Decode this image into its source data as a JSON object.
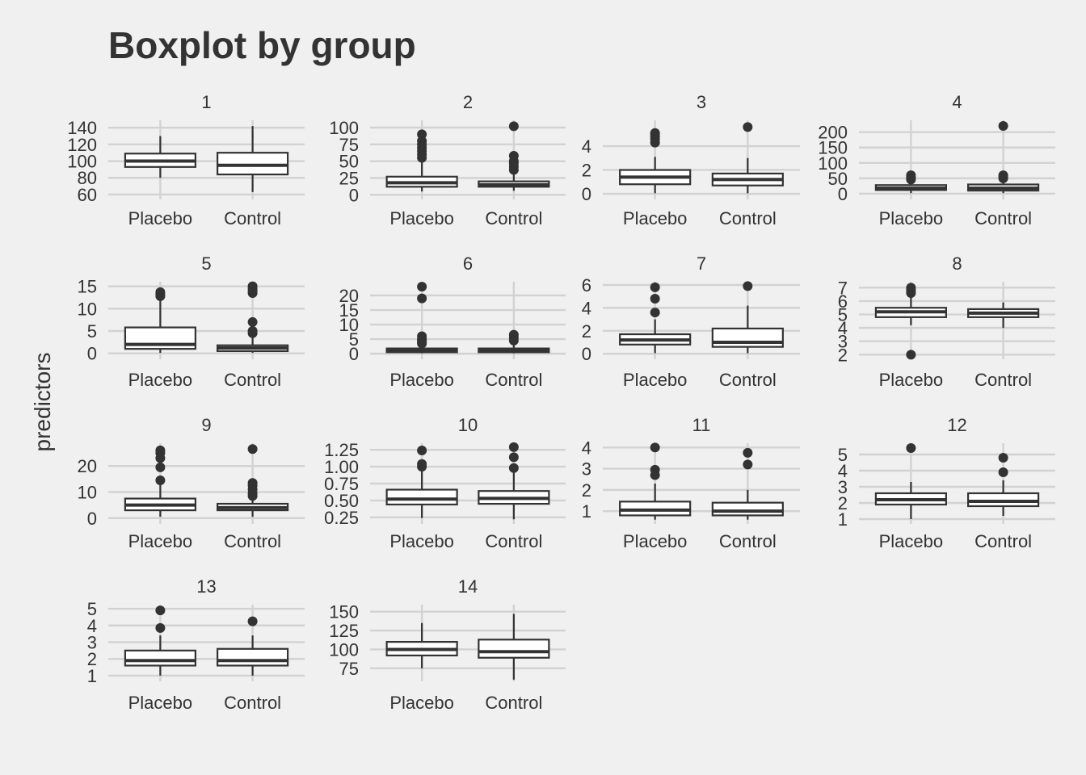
{
  "chart_data": {
    "type": "boxplot",
    "title": "Boxplot by group",
    "ylabel": "predictors",
    "xlabel": "",
    "categories": [
      "Placebo",
      "Control"
    ],
    "grid": "on",
    "legend": "none",
    "colors": {
      "background": "#f0f0f0",
      "grid": "#d2d2d2",
      "box_fill": "#ffffff",
      "ink": "#333333"
    },
    "panels": [
      {
        "label": "1",
        "ylim": [
          58,
          145
        ],
        "yticks": [
          60,
          80,
          100,
          120,
          140
        ],
        "boxes": [
          {
            "group": "Placebo",
            "lower": 80,
            "q1": 93,
            "median": 100,
            "q3": 109,
            "upper": 130,
            "outliers": []
          },
          {
            "group": "Control",
            "lower": 63,
            "q1": 84,
            "median": 95,
            "q3": 110,
            "upper": 142,
            "outliers": []
          }
        ]
      },
      {
        "label": "2",
        "ylim": [
          -2,
          106
        ],
        "yticks": [
          0,
          25,
          50,
          75,
          100
        ],
        "boxes": [
          {
            "group": "Placebo",
            "lower": 5,
            "q1": 12,
            "median": 18,
            "q3": 27,
            "upper": 48,
            "outliers": [
              55,
              60,
              65,
              70,
              75,
              80,
              90
            ]
          },
          {
            "group": "Control",
            "lower": 6,
            "q1": 12,
            "median": 15,
            "q3": 20,
            "upper": 30,
            "outliers": [
              37,
              42,
              47,
              50,
              58,
              102
            ]
          }
        ]
      },
      {
        "label": "3",
        "ylim": [
          -0.2,
          5.9
        ],
        "yticks": [
          0,
          2,
          4
        ],
        "boxes": [
          {
            "group": "Placebo",
            "lower": 0.05,
            "q1": 0.8,
            "median": 1.4,
            "q3": 2.0,
            "upper": 3.1,
            "outliers": [
              4.3,
              4.6,
              4.8,
              5.0,
              5.1
            ]
          },
          {
            "group": "Control",
            "lower": 0.05,
            "q1": 0.7,
            "median": 1.2,
            "q3": 1.7,
            "upper": 3.0,
            "outliers": [
              5.6
            ]
          }
        ]
      },
      {
        "label": "4",
        "ylim": [
          -8,
          228
        ],
        "yticks": [
          0,
          50,
          100,
          150,
          200
        ],
        "boxes": [
          {
            "group": "Placebo",
            "lower": 2,
            "q1": 12,
            "median": 18,
            "q3": 28,
            "upper": 38,
            "outliers": [
              46,
              52,
              60
            ]
          },
          {
            "group": "Control",
            "lower": 2,
            "q1": 10,
            "median": 18,
            "q3": 30,
            "upper": 40,
            "outliers": [
              50,
              55,
              60,
              220
            ]
          }
        ]
      },
      {
        "label": "5",
        "ylim": [
          -0.6,
          15.3
        ],
        "yticks": [
          0,
          5,
          10,
          15
        ],
        "boxes": [
          {
            "group": "Placebo",
            "lower": 0.1,
            "q1": 1.0,
            "median": 2.0,
            "q3": 5.8,
            "upper": 12.5,
            "outliers": [
              12.8,
              13.2,
              13.7
            ]
          },
          {
            "group": "Control",
            "lower": 0.1,
            "q1": 0.5,
            "median": 1.2,
            "q3": 1.8,
            "upper": 3.5,
            "outliers": [
              4.5,
              5.0,
              7.0,
              13.5,
              14.0,
              14.5,
              15.0
            ]
          }
        ]
      },
      {
        "label": "6",
        "ylim": [
          -0.8,
          23.6
        ],
        "yticks": [
          0,
          5,
          10,
          15,
          20
        ],
        "boxes": [
          {
            "group": "Placebo",
            "lower": 0.1,
            "q1": 0.5,
            "median": 1.0,
            "q3": 1.8,
            "upper": 3.0,
            "outliers": [
              3.5,
              4.0,
              4.5,
              5.0,
              6.0,
              19.0,
              23.0
            ]
          },
          {
            "group": "Control",
            "lower": 0.1,
            "q1": 0.5,
            "median": 1.0,
            "q3": 1.8,
            "upper": 3.5,
            "outliers": [
              4.5,
              5.5,
              6.5
            ]
          }
        ]
      },
      {
        "label": "7",
        "ylim": [
          -0.2,
          6.0
        ],
        "yticks": [
          0,
          2,
          4,
          6
        ],
        "boxes": [
          {
            "group": "Placebo",
            "lower": 0.05,
            "q1": 0.8,
            "median": 1.2,
            "q3": 1.7,
            "upper": 3.0,
            "outliers": [
              3.6,
              4.8,
              5.8
            ]
          },
          {
            "group": "Control",
            "lower": 0.05,
            "q1": 0.6,
            "median": 1.0,
            "q3": 2.2,
            "upper": 4.2,
            "outliers": [
              5.9
            ]
          }
        ]
      },
      {
        "label": "8",
        "ylim": [
          1.9,
          7.2
        ],
        "yticks": [
          2,
          3,
          4,
          5,
          6,
          7
        ],
        "boxes": [
          {
            "group": "Placebo",
            "lower": 4.2,
            "q1": 4.8,
            "median": 5.2,
            "q3": 5.5,
            "upper": 6.5,
            "outliers": [
              2.0,
              6.6,
              6.8,
              7.0
            ]
          },
          {
            "group": "Control",
            "lower": 4.0,
            "q1": 4.8,
            "median": 5.1,
            "q3": 5.4,
            "upper": 5.9,
            "outliers": []
          }
        ]
      },
      {
        "label": "9",
        "ylim": [
          -1,
          27.5
        ],
        "yticks": [
          0,
          10,
          20
        ],
        "boxes": [
          {
            "group": "Placebo",
            "lower": 0.5,
            "q1": 3.0,
            "median": 5.0,
            "q3": 7.5,
            "upper": 13.0,
            "outliers": [
              14.5,
              19.5,
              23.0,
              25.0,
              26.0
            ]
          },
          {
            "group": "Control",
            "lower": 0.5,
            "q1": 3.0,
            "median": 4.0,
            "q3": 5.5,
            "upper": 7.5,
            "outliers": [
              8.5,
              9.5,
              11.0,
              12.5,
              13.5,
              26.5
            ]
          }
        ]
      },
      {
        "label": "10",
        "ylim": [
          0.2,
          1.3
        ],
        "yticks": [
          0.25,
          0.5,
          0.75,
          1.0,
          1.25
        ],
        "boxes": [
          {
            "group": "Placebo",
            "lower": 0.24,
            "q1": 0.44,
            "median": 0.52,
            "q3": 0.66,
            "upper": 0.95,
            "outliers": [
              1.0,
              1.04,
              1.24
            ]
          },
          {
            "group": "Control",
            "lower": 0.22,
            "q1": 0.45,
            "median": 0.53,
            "q3": 0.64,
            "upper": 0.92,
            "outliers": [
              0.98,
              1.14,
              1.29
            ]
          }
        ]
      },
      {
        "label": "11",
        "ylim": [
          0.55,
          4.05
        ],
        "yticks": [
          1,
          2,
          3,
          4
        ],
        "boxes": [
          {
            "group": "Placebo",
            "lower": 0.6,
            "q1": 0.8,
            "median": 1.05,
            "q3": 1.45,
            "upper": 2.3,
            "outliers": [
              2.7,
              2.95,
              4.0
            ]
          },
          {
            "group": "Control",
            "lower": 0.6,
            "q1": 0.8,
            "median": 1.0,
            "q3": 1.4,
            "upper": 2.0,
            "outliers": [
              3.2,
              3.75
            ]
          }
        ]
      },
      {
        "label": "12",
        "ylim": [
          0.9,
          5.5
        ],
        "yticks": [
          1,
          2,
          3,
          4,
          5
        ],
        "boxes": [
          {
            "group": "Placebo",
            "lower": 1.0,
            "q1": 1.9,
            "median": 2.2,
            "q3": 2.6,
            "upper": 3.3,
            "outliers": [
              5.4
            ]
          },
          {
            "group": "Control",
            "lower": 1.2,
            "q1": 1.8,
            "median": 2.1,
            "q3": 2.6,
            "upper": 3.4,
            "outliers": [
              3.9,
              4.8
            ]
          }
        ]
      },
      {
        "label": "13",
        "ylim": [
          0.85,
          5.05
        ],
        "yticks": [
          1,
          2,
          3,
          4,
          5
        ],
        "boxes": [
          {
            "group": "Placebo",
            "lower": 1.0,
            "q1": 1.6,
            "median": 1.9,
            "q3": 2.5,
            "upper": 3.4,
            "outliers": [
              3.85,
              4.9
            ]
          },
          {
            "group": "Control",
            "lower": 1.0,
            "q1": 1.6,
            "median": 1.9,
            "q3": 2.6,
            "upper": 3.4,
            "outliers": [
              4.25
            ]
          }
        ]
      },
      {
        "label": "14",
        "ylim": [
          62,
          155
        ],
        "yticks": [
          75,
          100,
          125,
          150
        ],
        "boxes": [
          {
            "group": "Placebo",
            "lower": 75,
            "q1": 92,
            "median": 100,
            "q3": 110,
            "upper": 135,
            "outliers": []
          },
          {
            "group": "Control",
            "lower": 60,
            "q1": 89,
            "median": 97,
            "q3": 113,
            "upper": 147,
            "outliers": []
          }
        ]
      }
    ]
  }
}
